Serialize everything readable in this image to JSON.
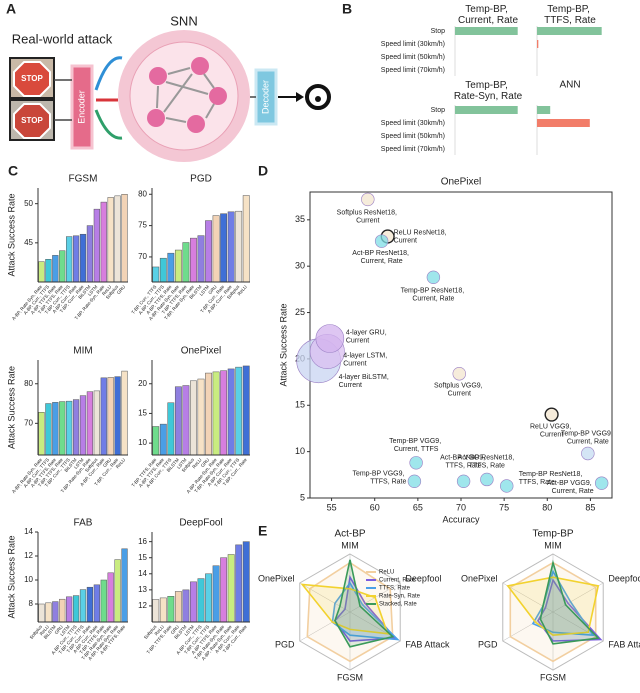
{
  "panel_labels": [
    "A",
    "B",
    "C",
    "D",
    "E"
  ],
  "diagram": {
    "title": "Real-world attack",
    "network": "SNN",
    "encoder": "Encoder",
    "decoder": "Decoder",
    "sign_text": "STOP"
  },
  "chart_data": [
    {
      "type": "barh-grid",
      "categories": [
        "Stop",
        "Speed limit (30km/h)",
        "Speed limit (50km/h)",
        "Speed limit (70km/h)"
      ],
      "colors": [
        "#82c39b",
        "#f27d69",
        "#f27d69",
        "#f27d69"
      ],
      "xlim": [
        0,
        1
      ],
      "series": [
        {
          "name": "Temp-BP, Current, Rate",
          "values": [
            0.95,
            0,
            0,
            0
          ]
        },
        {
          "name": "Temp-BP, TTFS, Rate",
          "values": [
            0.98,
            0.02,
            0,
            0
          ]
        },
        {
          "name": "Temp-BP, Rate-Syn, Rate",
          "values": [
            0.95,
            0,
            0,
            0
          ]
        },
        {
          "name": "ANN",
          "values": [
            0.2,
            0.8,
            0,
            0
          ]
        }
      ]
    },
    {
      "type": "bar",
      "title": "FGSM",
      "y_label": "Attack Success Rate",
      "ylim": [
        40,
        52
      ],
      "yticks": [
        45,
        50
      ],
      "categories": [
        "A-BP, Rate-Syn, Rate",
        "A-BP, Curr., TTFS",
        "A-BP, TTFS, Rate",
        "T-BP, TTFS, Rate",
        "T-BP, Curr., TTFS",
        "A-BP, Curr., Rate",
        "T-BP, Curr., Rate",
        "BiLSTM",
        "LSTM",
        "T-BP, Rate-Syn, Rate",
        "ReLU",
        "Softplus",
        "GRU"
      ],
      "values": [
        42.6,
        42.9,
        43.4,
        44.0,
        45.8,
        45.9,
        46.1,
        47.2,
        49.3,
        50.2,
        50.8,
        51.0,
        51.2
      ],
      "colors": [
        "#c9ec80",
        "#3fc8d8",
        "#4a9ee6",
        "#6fdc8c",
        "#5ad0e6",
        "#6f7de6",
        "#3f6fd6",
        "#8f7fe0",
        "#b77ee6",
        "#d77ede",
        "#f6e2c6",
        "#ece4d8",
        "#f2d3b6"
      ]
    },
    {
      "type": "bar",
      "title": "PGD",
      "ylim": [
        66,
        81
      ],
      "yticks": [
        70,
        75,
        80
      ],
      "categories": [
        "T-BP, Curr., TTFS",
        "A-BP, Curr., TTFS",
        "A-BP, TTFS, Rate",
        "A-BP, Rate-Syn, Rate",
        "T-BP, TTFS, Rate",
        "T-BP, Rate-Syn, Rate",
        "BiLSTM",
        "LSTM",
        "GRU",
        "T-BP, Curr., Rate",
        "A-BP, Curr., Rate",
        "Softplus",
        "ReLU"
      ],
      "values": [
        68.4,
        69.8,
        70.6,
        71.1,
        72.3,
        73.0,
        73.4,
        75.8,
        76.6,
        76.9,
        77.2,
        77.3,
        79.8
      ],
      "colors": [
        "#5ad0e6",
        "#3fc8d8",
        "#4a9ee6",
        "#c9ec80",
        "#6fdc8c",
        "#d77ede",
        "#8f7fe0",
        "#b77ee6",
        "#f2d3b6",
        "#3f6fd6",
        "#6f7de6",
        "#ece4d8",
        "#f6e2c6"
      ]
    },
    {
      "type": "bar",
      "title": "MIM",
      "y_label": "Attack Success Rate",
      "ylim": [
        62,
        86
      ],
      "yticks": [
        70,
        80
      ],
      "categories": [
        "A-BP, Rate-Syn, Rate",
        "A-BP, Curr., TTFS",
        "A-BP, TTFS, Rate",
        "T-BP, TTFS, Rate",
        "T-BP, Curr., TTFS",
        "BiLSTM",
        "LSTM",
        "T-BP, Rate-Syn, Rate",
        "Softplus",
        "A-BP, Curr., Rate",
        "GRU",
        "T-BP, Curr., Rate",
        "ReLU"
      ],
      "values": [
        72.8,
        75.0,
        75.3,
        75.5,
        75.6,
        76.0,
        77.0,
        78.0,
        78.2,
        81.5,
        81.6,
        81.8,
        83.2
      ],
      "colors": [
        "#c9ec80",
        "#3fc8d8",
        "#4a9ee6",
        "#6fdc8c",
        "#5ad0e6",
        "#8f7fe0",
        "#b77ee6",
        "#d77ede",
        "#ece4d8",
        "#6f7de6",
        "#f2d3b6",
        "#3f6fd6",
        "#f6e2c6"
      ]
    },
    {
      "type": "bar",
      "title": "OnePixel",
      "ylim": [
        8,
        24
      ],
      "yticks": [
        10,
        15,
        20
      ],
      "categories": [
        "T-BP, TTFS, Rate",
        "A-BP, TTFS, Rate",
        "A-BP, Curr., TTFS",
        "BiLSTM",
        "LSTM",
        "Softplus",
        "ReLU",
        "GRU",
        "A-BP, Rate-Syn, Rate",
        "T-BP, Rate-Syn, Rate",
        "A-BP, Curr., Rate",
        "T-BP, Curr., TTFS",
        "T-BP, Curr., Rate"
      ],
      "values": [
        12.8,
        13.2,
        16.8,
        19.5,
        19.7,
        20.5,
        20.8,
        21.8,
        22.0,
        22.2,
        22.5,
        22.8,
        23.0
      ],
      "colors": [
        "#6fdc8c",
        "#4a9ee6",
        "#3fc8d8",
        "#8f7fe0",
        "#b77ee6",
        "#ece4d8",
        "#f6e2c6",
        "#f2d3b6",
        "#c9ec80",
        "#d77ede",
        "#6f7de6",
        "#5ad0e6",
        "#3f6fd6"
      ]
    },
    {
      "type": "bar",
      "title": "FAB",
      "y_label": "Attack Success Rate",
      "ylim": [
        6.5,
        14
      ],
      "yticks": [
        8,
        10,
        12,
        14
      ],
      "categories": [
        "Softplus",
        "ReLU",
        "BiLSTM",
        "GRU",
        "LSTM",
        "A-BP, Curr., TTFS",
        "T-BP, Curr., TTFS",
        "T-BP, Curr., Rate",
        "A-BP, Curr., Rate",
        "T-BP, TTFS, Rate",
        "T-BP, Rate-Syn, Rate",
        "A-BP, Rate-Syn, Rate",
        "A-BP, TTFS, Rate"
      ],
      "values": [
        8.0,
        8.1,
        8.2,
        8.4,
        8.6,
        8.7,
        9.2,
        9.4,
        9.6,
        10.0,
        10.6,
        11.7,
        12.6
      ],
      "colors": [
        "#ece4d8",
        "#f6e2c6",
        "#8f7fe0",
        "#f2d3b6",
        "#b77ee6",
        "#3fc8d8",
        "#5ad0e6",
        "#3f6fd6",
        "#6f7de6",
        "#6fdc8c",
        "#d77ede",
        "#c9ec80",
        "#4a9ee6"
      ]
    },
    {
      "type": "bar",
      "title": "DeepFool",
      "ylim": [
        11,
        16.6
      ],
      "yticks": [
        12,
        13,
        14,
        15,
        16
      ],
      "categories": [
        "Softplus",
        "ReLU",
        "T-BP, TTFS, Rate",
        "GRU",
        "BiLSTM",
        "LSTM",
        "A-BP, Curr., TTFS",
        "T-BP, Curr., TTFS",
        "A-BP, TTFS, Rate",
        "T-BP, Rate-Syn, Rate",
        "A-BP, Rate-Syn, Rate",
        "A-BP, Curr., Rate",
        "T-BP, Curr., Rate"
      ],
      "values": [
        12.4,
        12.5,
        12.6,
        12.9,
        13.0,
        13.5,
        13.7,
        14.0,
        14.5,
        15.0,
        15.2,
        15.8,
        16.0
      ],
      "colors": [
        "#ece4d8",
        "#f6e2c6",
        "#6fdc8c",
        "#f2d3b6",
        "#8f7fe0",
        "#b77ee6",
        "#3fc8d8",
        "#5ad0e6",
        "#4a9ee6",
        "#d77ede",
        "#c9ec80",
        "#6f7de6",
        "#3f6fd6"
      ]
    },
    {
      "type": "bubble",
      "title": "OnePixel",
      "x_label": "Accuracy",
      "y_label": "Attack Success Rate",
      "xlim": [
        52.5,
        87.5
      ],
      "xticks": [
        55,
        60,
        65,
        70,
        75,
        80,
        85
      ],
      "ylim": [
        5,
        38
      ],
      "yticks": [
        5,
        10,
        15,
        20,
        25,
        30,
        35
      ],
      "labels": [
        "Softplus ResNet18, Current",
        "ReLU ResNet18, Current",
        "Act-BP ResNet18, Current, Rate",
        "Temp-BP ResNet18, Current, Rate",
        "4-layer GRU, Current",
        "4-layer LSTM, Current",
        "4-layer BiLSTM, Current",
        "Softplus VGG9, Current",
        "ReLU VGG9, Current",
        "Temp-BP VGG9, Current, TTFS",
        "Temp-BP VGG9, TTFS, Rate",
        "Act-BP VGG9, TTFS, Rate",
        "Act-BP ResNet18, TTFS, Rate",
        "Temp-BP ResNet18, TTFS, Rate",
        "Temp-BP VGG9, Current, Rate",
        "Act-BP VGG9, Current, Rate"
      ],
      "x": [
        59.2,
        61.5,
        60.8,
        66.8,
        54.8,
        54.5,
        53.5,
        69.8,
        80.5,
        64.8,
        64.6,
        70.3,
        73.0,
        75.3,
        84.7,
        86.3
      ],
      "y": [
        37.2,
        33.2,
        32.7,
        28.8,
        22.2,
        20.8,
        19.8,
        18.4,
        14.0,
        8.8,
        6.8,
        6.8,
        7.0,
        6.3,
        9.8,
        6.6
      ],
      "sizes": [
        1.6,
        1.6,
        1.6,
        1.6,
        3.5,
        4.3,
        5.5,
        1.6,
        1.6,
        1.6,
        1.6,
        1.6,
        1.6,
        1.6,
        1.6,
        1.6
      ],
      "colors": [
        "#f3e6cf",
        "#f3e6cf",
        "#7fdde6",
        "#7fdde6",
        "#d3b3ee",
        "#d9bff0",
        "#c8d4f2",
        "#f3e6cf",
        "#f3e6cf",
        "#7fdde6",
        "#7fdde6",
        "#7fdde6",
        "#7fdde6",
        "#7fdde6",
        "#c6dcf2",
        "#7fdde6"
      ]
    },
    {
      "type": "radar",
      "axes": [
        "MIM",
        "Deepfool",
        "FAB Attack",
        "FGSM",
        "PGD",
        "OnePixel"
      ],
      "rlim": [
        0,
        1
      ],
      "legend": "upper-right",
      "series": [
        {
          "name": "ReLU",
          "color": "#f2cfa0"
        },
        {
          "name": "Current, Rate",
          "color": "#7b5ce0"
        },
        {
          "name": "TTFS, Rate",
          "color": "#4aa0e8"
        },
        {
          "name": "Rate-Syn, Rate",
          "color": "#f2d22e"
        },
        {
          "name": "Stacked, Rate",
          "color": "#3a9a5a"
        }
      ],
      "panels": [
        {
          "title": "Act-BP",
          "values": [
            [
              0.85,
              0.8,
              0.85,
              0.85,
              0.85,
              0.8
            ],
            [
              0.6,
              0.3,
              0.9,
              0.5,
              0.3,
              0.1
            ],
            [
              0.5,
              0.25,
              0.95,
              0.4,
              0.35,
              0.3
            ],
            [
              0.4,
              0.5,
              0.75,
              0.3,
              0.35,
              0.95
            ],
            [
              0.9,
              0.2,
              0.85,
              0.6,
              0.3,
              0.2
            ]
          ]
        },
        {
          "title": "Temp-BP",
          "values": [
            [
              0.85,
              0.85,
              0.85,
              0.85,
              0.85,
              0.85
            ],
            [
              0.55,
              0.3,
              0.95,
              0.5,
              0.3,
              0.15
            ],
            [
              0.7,
              0.35,
              0.8,
              0.35,
              0.4,
              0.2
            ],
            [
              0.6,
              0.9,
              0.7,
              0.4,
              0.35,
              0.9
            ],
            [
              0.85,
              0.25,
              0.9,
              0.55,
              0.25,
              0.2
            ]
          ]
        }
      ]
    }
  ]
}
